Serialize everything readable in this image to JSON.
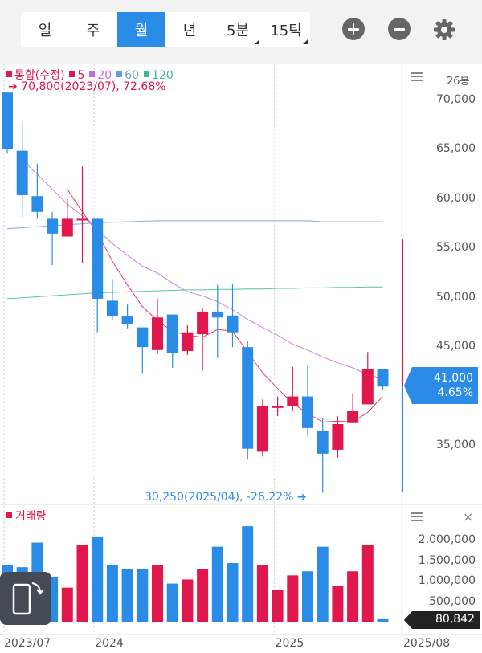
{
  "toolbar": {
    "tabs": [
      {
        "label": "일",
        "active": false,
        "corner": false
      },
      {
        "label": "주",
        "active": false,
        "corner": false
      },
      {
        "label": "월",
        "active": true,
        "corner": false
      },
      {
        "label": "년",
        "active": false,
        "corner": false
      },
      {
        "label": "5분",
        "active": false,
        "corner": true
      },
      {
        "label": "15틱",
        "active": false,
        "corner": true
      }
    ],
    "zoom_in_icon": "plus-circle-icon",
    "zoom_out_icon": "minus-circle-icon",
    "settings_icon": "gear-icon"
  },
  "legend": {
    "main": "통합(수정)",
    "ma": [
      {
        "label": "5",
        "color": "#e0184d"
      },
      {
        "label": "20",
        "color": "#c36fd6"
      },
      {
        "label": "60",
        "color": "#6a9ed6"
      },
      {
        "label": "120",
        "color": "#3bb89a"
      }
    ],
    "main_color": "#e0184d"
  },
  "count_label": "26봉",
  "max_note": "➔ 70,800(2023/07), 72.68%",
  "min_note": "30,250(2025/04), -26.22%  ➔",
  "current_price": {
    "price": "41,000",
    "change": "4.65%"
  },
  "volume": {
    "legend": "거래량",
    "current": "80,842"
  },
  "colors": {
    "up": "#e0184d",
    "down": "#2b8ce8",
    "accent": "#2b8ce8"
  },
  "chart_data": {
    "type": "candlestick",
    "price_axis": {
      "ticks": [
        70000,
        65000,
        60000,
        55000,
        50000,
        45000,
        35000
      ],
      "tick_labels": [
        "70,000",
        "65,000",
        "60,000",
        "55,000",
        "50,000",
        "45,000",
        "35,000"
      ]
    },
    "volume_axis": {
      "ticks": [
        2000000,
        1500000,
        1000000,
        500000
      ],
      "tick_labels": [
        "2,000,000",
        "1,500,000",
        "1,000,000",
        "500,000"
      ]
    },
    "x_labels": [
      {
        "label": "2023/07",
        "index": 0
      },
      {
        "label": "2024",
        "index": 6
      },
      {
        "label": "2025",
        "index": 18
      },
      {
        "label": "2025/08",
        "index": 25.5
      }
    ],
    "candles": [
      {
        "open": 70800,
        "high": 70800,
        "low": 64600,
        "close": 65100
      },
      {
        "open": 64900,
        "high": 67800,
        "low": 58200,
        "close": 60400
      },
      {
        "open": 60300,
        "high": 63600,
        "low": 58000,
        "close": 58700
      },
      {
        "open": 58000,
        "high": 58700,
        "low": 53300,
        "close": 56500
      },
      {
        "open": 56200,
        "high": 60000,
        "low": 56200,
        "close": 58000
      },
      {
        "open": 58000,
        "high": 63300,
        "low": 53500,
        "close": 58000
      },
      {
        "open": 58000,
        "high": 58000,
        "low": 46500,
        "close": 49900
      },
      {
        "open": 49700,
        "high": 51900,
        "low": 47700,
        "close": 48100
      },
      {
        "open": 48100,
        "high": 49300,
        "low": 46900,
        "close": 47300
      },
      {
        "open": 47000,
        "high": 47000,
        "low": 42300,
        "close": 45000
      },
      {
        "open": 44700,
        "high": 49900,
        "low": 44300,
        "close": 48000
      },
      {
        "open": 48300,
        "high": 48300,
        "low": 42900,
        "close": 44400
      },
      {
        "open": 44600,
        "high": 47200,
        "low": 44200,
        "close": 46500
      },
      {
        "open": 46300,
        "high": 49000,
        "low": 42600,
        "close": 48600
      },
      {
        "open": 48600,
        "high": 51300,
        "low": 43900,
        "close": 48000
      },
      {
        "open": 48200,
        "high": 51400,
        "low": 45000,
        "close": 46500
      },
      {
        "open": 45000,
        "high": 45600,
        "low": 33600,
        "close": 34700
      },
      {
        "open": 34400,
        "high": 39700,
        "low": 33900,
        "close": 39000
      },
      {
        "open": 39000,
        "high": 40000,
        "low": 38000,
        "close": 39000
      },
      {
        "open": 39000,
        "high": 43000,
        "low": 38500,
        "close": 40000
      },
      {
        "open": 40000,
        "high": 43100,
        "low": 36000,
        "close": 36800
      },
      {
        "open": 36500,
        "high": 37800,
        "low": 30250,
        "close": 34200
      },
      {
        "open": 34600,
        "high": 38000,
        "low": 33800,
        "close": 37200
      },
      {
        "open": 37300,
        "high": 40300,
        "low": 37300,
        "close": 38500
      },
      {
        "open": 39200,
        "high": 44500,
        "low": 39200,
        "close": 42800
      },
      {
        "open": 42800,
        "high": 42800,
        "low": 40600,
        "close": 41000
      }
    ],
    "volumes": [
      1400000,
      1350000,
      1950000,
      1100000,
      850000,
      1900000,
      2100000,
      1400000,
      1300000,
      1300000,
      1400000,
      950000,
      1050000,
      1300000,
      1850000,
      1450000,
      2350000,
      1400000,
      800000,
      1150000,
      1250000,
      1850000,
      900000,
      1250000,
      1900000,
      80842
    ],
    "moving_averages": [
      {
        "name": "5",
        "color": "#e0184d",
        "values": [
          null,
          null,
          null,
          null,
          61000,
          58700,
          56600,
          53700,
          51300,
          49100,
          47700,
          46600,
          46200,
          46000,
          46800,
          46600,
          44500,
          42400,
          40800,
          39300,
          38300,
          37400,
          37500,
          37400,
          38400,
          40000
        ]
      },
      {
        "name": "20",
        "color": "#c36fd6",
        "values": [
          null,
          64000,
          62500,
          61000,
          59500,
          58300,
          56900,
          55500,
          54300,
          53200,
          52500,
          51500,
          50600,
          50200,
          49600,
          48800,
          47800,
          47000,
          46200,
          45300,
          44700,
          44000,
          43400,
          42900,
          42200,
          41800
        ]
      },
      {
        "name": "60",
        "color": "#6a9ed6",
        "values": [
          57000,
          57100,
          57200,
          57300,
          57400,
          57500,
          57600,
          57650,
          57700,
          57750,
          57800,
          57800,
          57800,
          57800,
          57800,
          57800,
          57800,
          57800,
          57800,
          57800,
          57800,
          57700,
          57700,
          57700,
          57700,
          57700
        ]
      },
      {
        "name": "120",
        "color": "#3bb89a",
        "values": [
          49900,
          50000,
          50100,
          50200,
          50300,
          50400,
          50500,
          50550,
          50600,
          50650,
          50700,
          50750,
          50800,
          50800,
          50850,
          50850,
          50900,
          50900,
          50950,
          50950,
          51000,
          51000,
          51050,
          51050,
          51100,
          51100
        ]
      }
    ],
    "max": {
      "value": 70800,
      "date": "2023/07",
      "pct": "72.68%"
    },
    "min": {
      "value": 30250,
      "date": "2025/04",
      "pct": "-26.22%"
    }
  }
}
